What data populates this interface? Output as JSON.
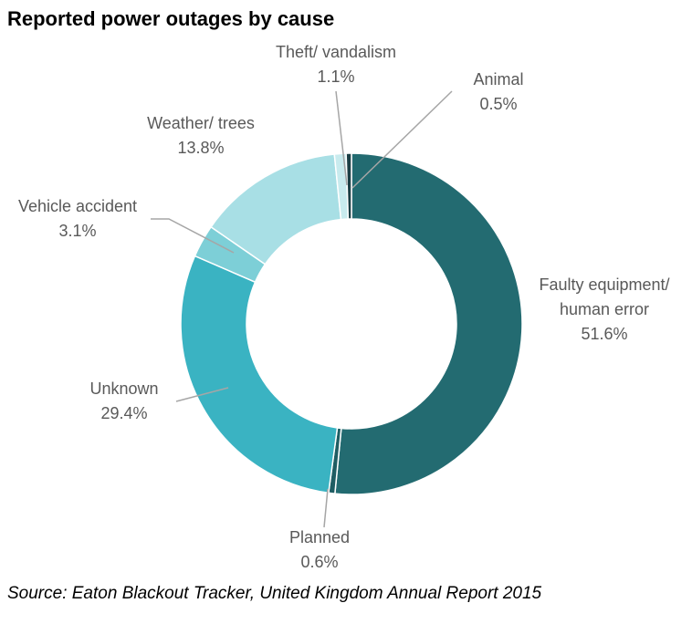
{
  "chart_data": {
    "type": "donut",
    "title": "Reported power outages by cause",
    "source": "Source: Eaton Blackout Tracker, United Kingdom Annual Report 2015",
    "categories": [
      "Faulty equipment/ human error",
      "Planned",
      "Unknown",
      "Vehicle accident",
      "Weather/ trees",
      "Theft/ vandalism",
      "Animal"
    ],
    "values": [
      51.6,
      0.6,
      29.4,
      3.1,
      13.8,
      1.1,
      0.5
    ],
    "value_labels": [
      "51.6%",
      "0.6%",
      "29.4%",
      "3.1%",
      "13.8%",
      "1.1%",
      "0.5%"
    ],
    "colors": [
      "#236b71",
      "#1f5d63",
      "#3ab3c2",
      "#7dcfd7",
      "#a8dfe5",
      "#c8ebee",
      "#1b3f45"
    ]
  }
}
